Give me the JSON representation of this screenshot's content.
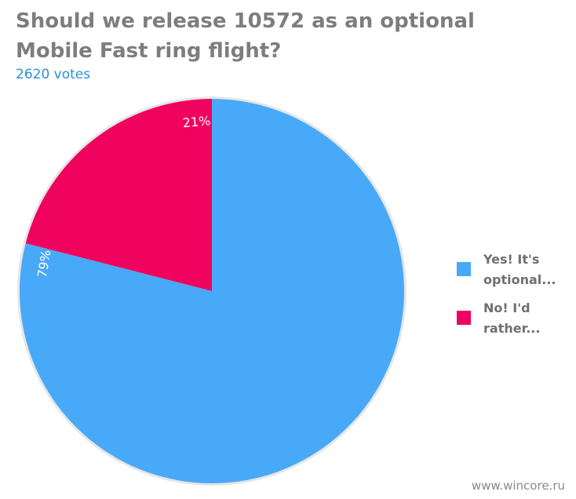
{
  "poll": {
    "title": "Should we release 10572 as an optional Mobile Fast ring flight?",
    "votes_text": "2620 votes"
  },
  "chart_data": {
    "type": "pie",
    "labels": [
      "Yes! It's optional...",
      "No! I'd rather..."
    ],
    "values": [
      79,
      21
    ],
    "value_labels": [
      "79%",
      "21%"
    ],
    "colors": [
      "#48a9f8",
      "#f0025f"
    ],
    "start": "12 o'clock, clockwise",
    "legend_position": "right"
  },
  "legend": {
    "items": [
      {
        "label": "Yes! It's\noptional...",
        "color": "#48a9f8"
      },
      {
        "label": "No! I'd\nrather...",
        "color": "#f0025f"
      }
    ]
  },
  "watermark": "www.wincore.ru"
}
